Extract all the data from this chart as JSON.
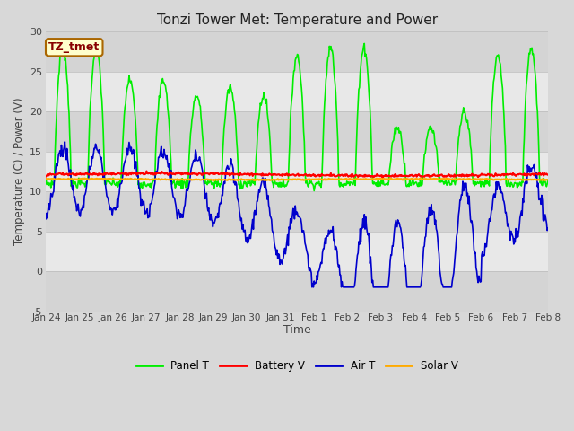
{
  "title": "Tonzi Tower Met: Temperature and Power",
  "xlabel": "Time",
  "ylabel": "Temperature (C) / Power (V)",
  "ylim": [
    -5,
    30
  ],
  "yticks": [
    -5,
    0,
    5,
    10,
    15,
    20,
    25,
    30
  ],
  "bg_color": "#d8d8d8",
  "plot_bg_color": "#e8e8e8",
  "band_light": "#e8e8e8",
  "band_dark": "#d0d0d0",
  "annotation_label": "TZ_tmet",
  "annotation_bg": "#ffffcc",
  "annotation_border": "#aa6600",
  "annotation_text_color": "#880000",
  "x_tick_labels": [
    "Jan 24",
    "Jan 25",
    "Jan 26",
    "Jan 27",
    "Jan 28",
    "Jan 29",
    "Jan 30",
    "Jan 31",
    "Feb 1",
    "Feb 2",
    "Feb 3",
    "Feb 4",
    "Feb 5",
    "Feb 6",
    "Feb 7",
    "Feb 8"
  ],
  "num_days": 15,
  "panel_T_color": "#00ee00",
  "battery_V_color": "#ff0000",
  "air_T_color": "#0000cc",
  "solar_V_color": "#ffaa00",
  "line_width": 1.2,
  "battery_V_value": 12.1,
  "solar_V_value": 11.5
}
